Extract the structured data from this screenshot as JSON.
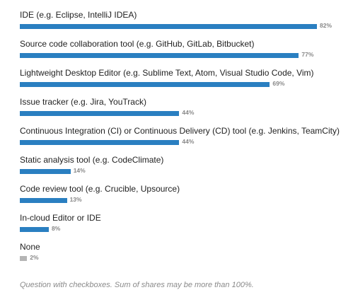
{
  "chart_data": {
    "type": "bar",
    "orientation": "horizontal",
    "categories": [
      "IDE (e.g. Eclipse, IntelliJ IDEA)",
      "Source code collaboration tool (e.g. GitHub, GitLab, Bitbucket)",
      "Lightweight Desktop Editor (e.g. Sublime Text, Atom, Visual Studio Code, Vim)",
      "Issue tracker (e.g. Jira, YouTrack)",
      "Continuous Integration (CI) or Continuous Delivery (CD) tool (e.g. Jenkins, TeamCity)",
      "Static analysis tool (e.g. CodeClimate)",
      "Code review tool (e.g. Crucible, Upsource)",
      "In-cloud Editor or IDE",
      "None"
    ],
    "values": [
      82,
      77,
      69,
      44,
      44,
      14,
      13,
      8,
      2
    ],
    "value_labels": [
      "82%",
      "77%",
      "69%",
      "44%",
      "44%",
      "14%",
      "13%",
      "8%",
      "2%"
    ],
    "xlim": [
      0,
      82
    ],
    "grid": false,
    "legend": "none",
    "colors": {
      "bar": "#2a7fc1",
      "none_bar": "#b5b5b5",
      "value_text": "#888888"
    },
    "footnote": "Question with checkboxes. Sum of shares may be more than 100%."
  }
}
